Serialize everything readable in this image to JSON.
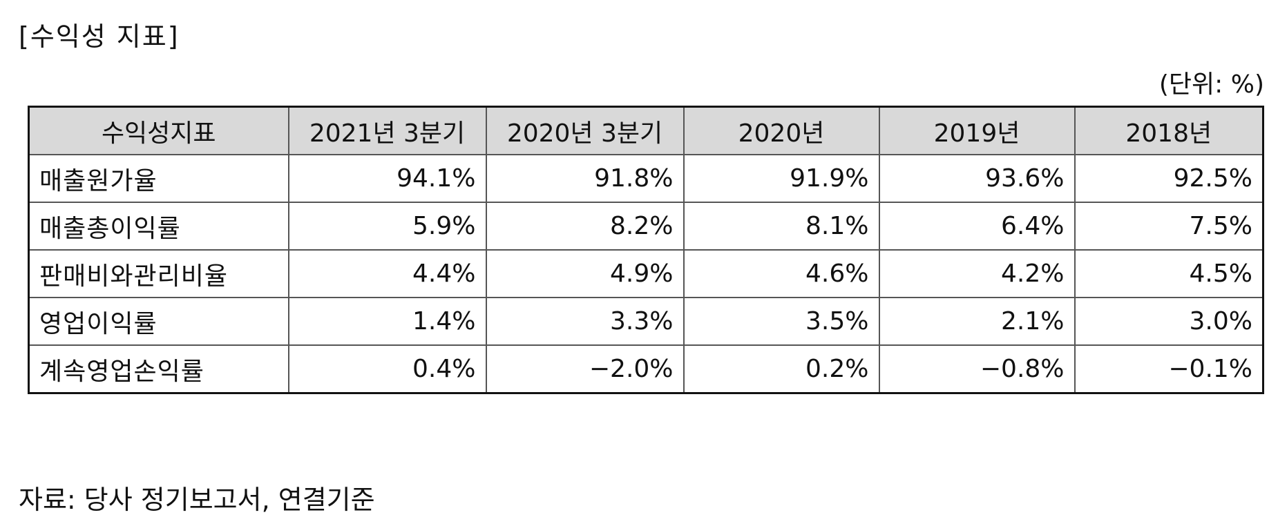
{
  "title": "[수익성 지표]",
  "unit": "(단위: %)",
  "table": {
    "headers": [
      "수익성지표",
      "2021년 3분기",
      "2020년 3분기",
      "2020년",
      "2019년",
      "2018년"
    ],
    "rows": [
      {
        "label": "매출원가율",
        "values": [
          "94.1%",
          "91.8%",
          "91.9%",
          "93.6%",
          "92.5%"
        ]
      },
      {
        "label": "매출총이익률",
        "values": [
          "5.9%",
          "8.2%",
          "8.1%",
          "6.4%",
          "7.5%"
        ]
      },
      {
        "label": "판매비와관리비율",
        "values": [
          "4.4%",
          "4.9%",
          "4.6%",
          "4.2%",
          "4.5%"
        ]
      },
      {
        "label": "영업이익률",
        "values": [
          "1.4%",
          "3.3%",
          "3.5%",
          "2.1%",
          "3.0%"
        ]
      },
      {
        "label": "계속영업손익률",
        "values": [
          "0.4%",
          "−2.0%",
          "0.2%",
          "−0.8%",
          "−0.1%"
        ]
      }
    ]
  },
  "source": "자료: 당사 정기보고서, 연결기준"
}
